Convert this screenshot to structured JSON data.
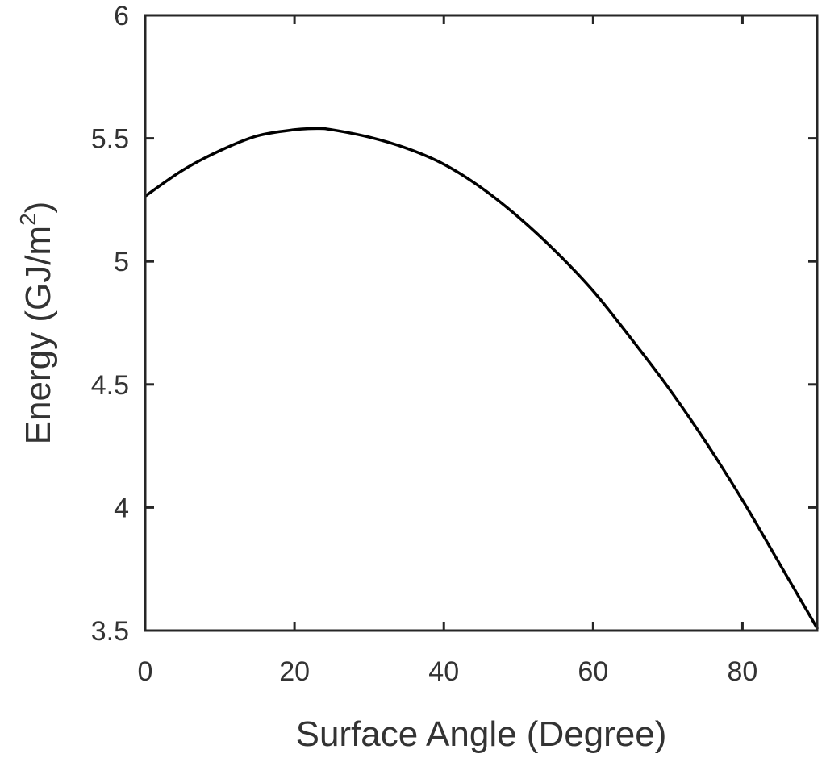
{
  "chart_data": {
    "type": "line",
    "title": "",
    "xlabel": "Surface Angle (Degree)",
    "ylabel": "Energy (GJ/m",
    "ylabel_superscript": "2",
    "ylabel_suffix": ")",
    "xlim": [
      0,
      90
    ],
    "ylim": [
      3.5,
      6
    ],
    "xticks": [
      0,
      20,
      40,
      60,
      80
    ],
    "xtick_labels": [
      "0",
      "20",
      "40",
      "60",
      "80"
    ],
    "yticks": [
      3.5,
      4,
      4.5,
      5,
      5.5,
      6
    ],
    "ytick_labels": [
      "3.5",
      "4",
      "4.5",
      "5",
      "5.5",
      "6"
    ],
    "grid": false,
    "line_color": "#000000",
    "series": [
      {
        "x": [
          0,
          5,
          10,
          15,
          20,
          23,
          25,
          30,
          35,
          40,
          45,
          50,
          55,
          60,
          65,
          70,
          75,
          80,
          85,
          90
        ],
        "y": [
          5.265,
          5.37,
          5.45,
          5.51,
          5.535,
          5.54,
          5.535,
          5.505,
          5.46,
          5.395,
          5.3,
          5.18,
          5.04,
          4.88,
          4.69,
          4.49,
          4.27,
          4.03,
          3.77,
          3.51
        ]
      }
    ]
  }
}
